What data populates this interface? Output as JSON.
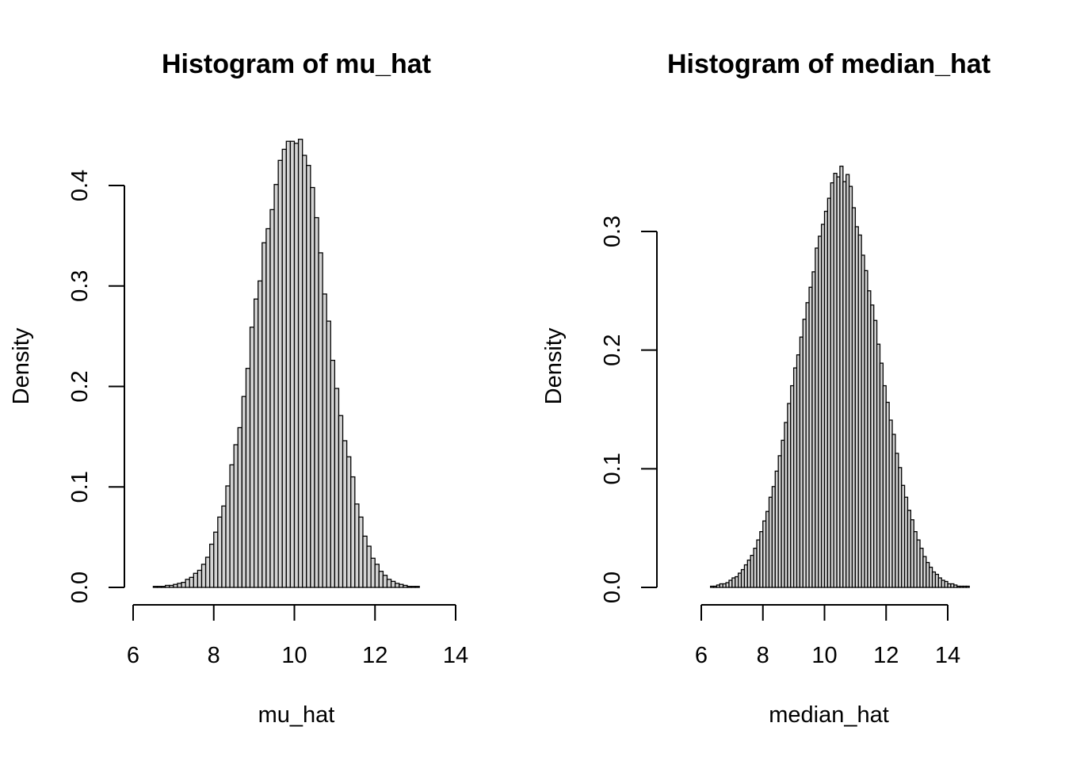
{
  "chart_data": [
    {
      "type": "bar",
      "title": "Histogram of mu_hat",
      "xlabel": "mu_hat",
      "ylabel": "Density",
      "xlim": [
        6,
        14
      ],
      "ylim": [
        0,
        0.4
      ],
      "x_ticks": [
        "6",
        "8",
        "10",
        "12",
        "14"
      ],
      "y_ticks": [
        "0.0",
        "0.1",
        "0.2",
        "0.3",
        "0.4"
      ],
      "bin_start": 6.1,
      "bin_width": 0.1,
      "values": [
        0.0,
        0.0,
        0.0,
        0.0,
        0.001,
        0.001,
        0.001,
        0.002,
        0.002,
        0.003,
        0.004,
        0.005,
        0.008,
        0.01,
        0.014,
        0.017,
        0.023,
        0.03,
        0.043,
        0.055,
        0.07,
        0.081,
        0.101,
        0.122,
        0.142,
        0.159,
        0.19,
        0.218,
        0.259,
        0.287,
        0.305,
        0.343,
        0.357,
        0.376,
        0.401,
        0.425,
        0.436,
        0.444,
        0.444,
        0.442,
        0.446,
        0.43,
        0.42,
        0.398,
        0.368,
        0.333,
        0.292,
        0.265,
        0.226,
        0.198,
        0.171,
        0.146,
        0.13,
        0.11,
        0.083,
        0.07,
        0.051,
        0.041,
        0.029,
        0.023,
        0.016,
        0.012,
        0.008,
        0.006,
        0.004,
        0.003,
        0.002,
        0.001,
        0.001,
        0.001,
        0.0,
        0.0,
        0.0,
        0.0,
        0.0,
        0.0,
        0.0,
        0.0,
        0.0
      ]
    },
    {
      "type": "bar",
      "title": "Histogram of median_hat",
      "xlabel": "median_hat",
      "ylabel": "Density",
      "xlim": [
        6,
        14
      ],
      "ylim": [
        0,
        0.3
      ],
      "x_ticks": [
        "6",
        "8",
        "10",
        "12",
        "14"
      ],
      "y_ticks": [
        "0.0",
        "0.1",
        "0.2",
        "0.3"
      ],
      "bin_start": 5.1,
      "bin_width": 0.1,
      "values": [
        0.0,
        0.0,
        0.0,
        0.0,
        0.0,
        0.0,
        0.0,
        0.0,
        0.0,
        0.0,
        0.0,
        0.0,
        0.001,
        0.001,
        0.002,
        0.003,
        0.003,
        0.004,
        0.006,
        0.008,
        0.009,
        0.012,
        0.015,
        0.019,
        0.023,
        0.027,
        0.033,
        0.04,
        0.047,
        0.056,
        0.064,
        0.076,
        0.085,
        0.098,
        0.111,
        0.124,
        0.139,
        0.155,
        0.17,
        0.185,
        0.196,
        0.211,
        0.226,
        0.24,
        0.253,
        0.266,
        0.286,
        0.296,
        0.306,
        0.317,
        0.328,
        0.341,
        0.349,
        0.346,
        0.355,
        0.342,
        0.348,
        0.338,
        0.32,
        0.304,
        0.297,
        0.28,
        0.267,
        0.25,
        0.238,
        0.225,
        0.205,
        0.189,
        0.17,
        0.156,
        0.141,
        0.129,
        0.113,
        0.101,
        0.086,
        0.076,
        0.065,
        0.057,
        0.047,
        0.04,
        0.033,
        0.026,
        0.021,
        0.017,
        0.013,
        0.011,
        0.008,
        0.006,
        0.005,
        0.003,
        0.003,
        0.002,
        0.001,
        0.001,
        0.001,
        0.001,
        0.0,
        0.0,
        0.0,
        0.0,
        0.0,
        0.0,
        0.0,
        0.0
      ]
    }
  ]
}
